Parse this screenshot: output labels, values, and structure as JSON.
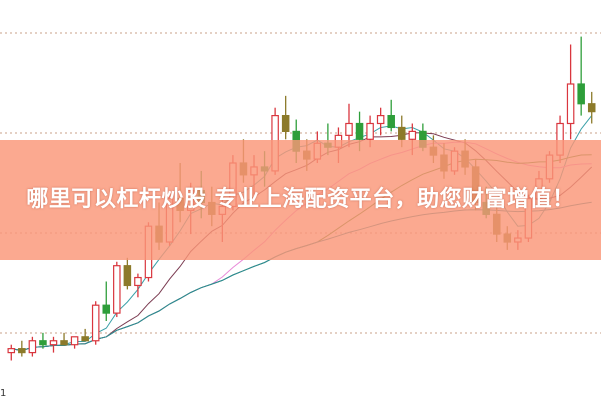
{
  "banner": {
    "text": "哪里可以杠杆炒股 专业上海配资平台，助您财富增值！"
  },
  "corner_label": "1",
  "chart_data": {
    "type": "candlestick",
    "title": "",
    "grid": "horizontal dotted",
    "ylim": [
      0,
      100
    ],
    "colors": {
      "up": "#d9363e",
      "down": "#2e9e3a",
      "down_alt": "#8c7a2a",
      "grid": "#c8a08a"
    },
    "ohlc": [
      [
        12,
        14,
        10,
        13
      ],
      [
        13,
        15,
        11,
        12
      ],
      [
        12,
        16,
        11,
        15
      ],
      [
        15,
        17,
        13,
        14
      ],
      [
        14,
        16,
        12,
        15
      ],
      [
        15,
        17,
        14,
        14
      ],
      [
        14,
        16,
        13,
        16
      ],
      [
        16,
        18,
        15,
        15
      ],
      [
        15,
        25,
        14,
        24
      ],
      [
        24,
        30,
        20,
        22
      ],
      [
        22,
        35,
        21,
        34
      ],
      [
        34,
        36,
        28,
        29
      ],
      [
        29,
        32,
        26,
        31
      ],
      [
        31,
        45,
        30,
        44
      ],
      [
        44,
        50,
        38,
        40
      ],
      [
        40,
        52,
        39,
        51
      ],
      [
        51,
        60,
        45,
        48
      ],
      [
        48,
        55,
        42,
        53
      ],
      [
        53,
        58,
        46,
        50
      ],
      [
        50,
        54,
        44,
        47
      ],
      [
        47,
        52,
        40,
        49
      ],
      [
        49,
        62,
        48,
        60
      ],
      [
        60,
        66,
        55,
        57
      ],
      [
        57,
        62,
        52,
        59
      ],
      [
        59,
        63,
        54,
        58
      ],
      [
        58,
        74,
        57,
        72
      ],
      [
        72,
        77,
        66,
        68
      ],
      [
        68,
        71,
        60,
        63
      ],
      [
        63,
        66,
        58,
        61
      ],
      [
        61,
        68,
        60,
        65
      ],
      [
        65,
        70,
        62,
        64
      ],
      [
        64,
        69,
        60,
        67
      ],
      [
        67,
        75,
        64,
        70
      ],
      [
        70,
        73,
        63,
        66
      ],
      [
        66,
        72,
        64,
        70
      ],
      [
        70,
        74,
        67,
        72
      ],
      [
        72,
        76,
        68,
        69
      ],
      [
        69,
        72,
        64,
        66
      ],
      [
        66,
        70,
        62,
        68
      ],
      [
        68,
        70,
        63,
        64
      ],
      [
        64,
        67,
        60,
        62
      ],
      [
        62,
        65,
        56,
        58
      ],
      [
        58,
        64,
        57,
        63
      ],
      [
        63,
        66,
        57,
        59
      ],
      [
        59,
        61,
        48,
        50
      ],
      [
        50,
        54,
        46,
        47
      ],
      [
        47,
        50,
        40,
        42
      ],
      [
        42,
        44,
        38,
        40
      ],
      [
        40,
        43,
        38,
        41
      ],
      [
        41,
        52,
        40,
        51
      ],
      [
        51,
        58,
        50,
        56
      ],
      [
        56,
        63,
        55,
        62
      ],
      [
        62,
        72,
        60,
        70
      ],
      [
        70,
        90,
        66,
        80
      ],
      [
        80,
        92,
        72,
        75
      ],
      [
        75,
        78,
        70,
        73
      ]
    ],
    "moving_averages": [
      {
        "period": 5,
        "color": "#3aa0a8"
      },
      {
        "period": 10,
        "color": "#7a3a50"
      },
      {
        "period": 20,
        "color": "#e88ad8"
      },
      {
        "period": 30,
        "color": "#4a8a2a"
      },
      {
        "period": 60,
        "color": "#2a8a9a"
      }
    ]
  }
}
